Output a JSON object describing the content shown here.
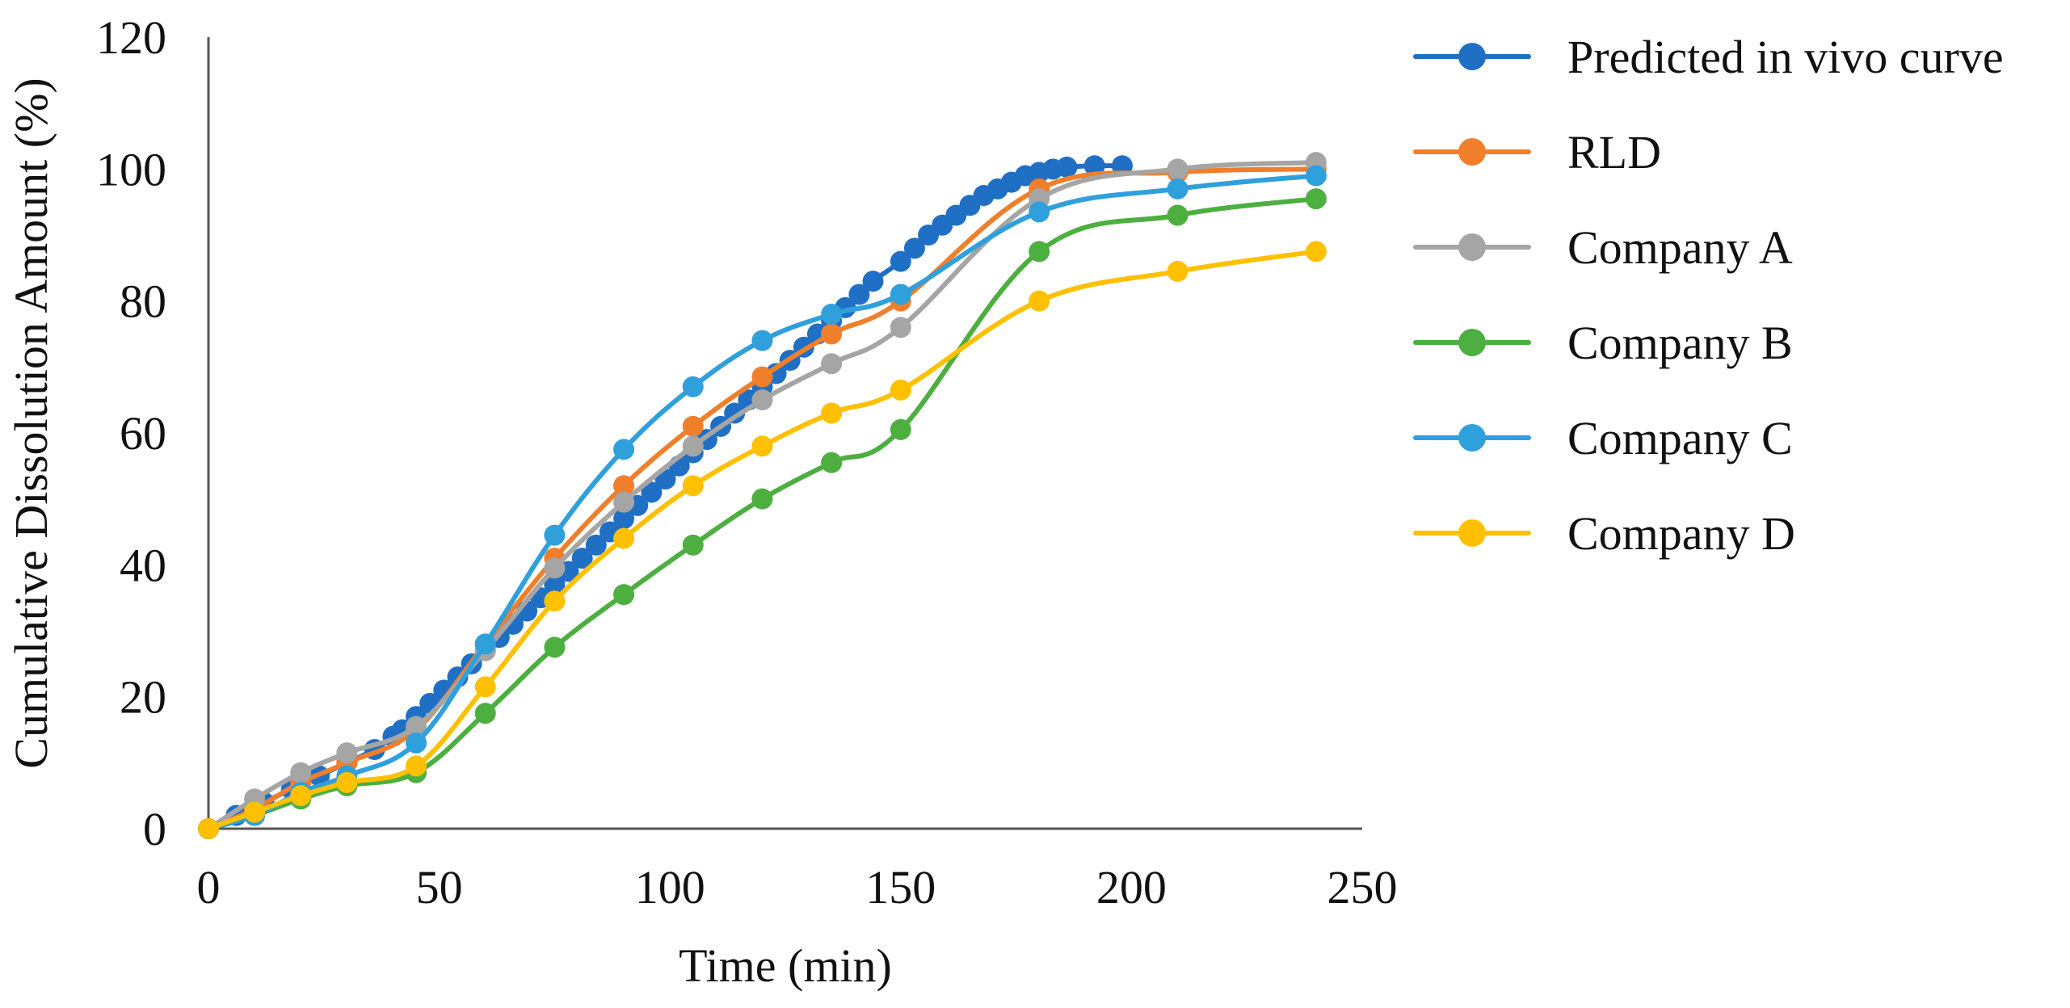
{
  "chart_data": {
    "type": "line",
    "title": "",
    "xlabel": "Time (min)",
    "ylabel": "Cumulative Dissolution Amount (%)",
    "xlim": [
      0,
      250
    ],
    "ylim": [
      0,
      120
    ],
    "xticks": [
      0,
      50,
      100,
      150,
      200,
      250
    ],
    "yticks": [
      0,
      20,
      40,
      60,
      80,
      100,
      120
    ],
    "x_tick_labels": [
      "0",
      "50",
      "100",
      "150",
      "200",
      "250"
    ],
    "y_tick_labels": [
      "0",
      "20",
      "40",
      "60",
      "80",
      "100",
      "120"
    ],
    "grid": false,
    "legend_position": "right",
    "series": [
      {
        "name": "Predicted in vivo curve",
        "color": "#1F6FC5",
        "x": [
          0,
          6,
          12,
          18,
          24,
          30,
          36,
          40,
          42,
          45,
          48,
          51,
          54,
          57,
          60,
          63,
          66,
          69,
          72,
          75,
          78,
          81,
          84,
          87,
          90,
          93,
          96,
          99,
          102,
          105,
          108,
          111,
          114,
          117,
          120,
          123,
          126,
          129,
          132,
          135,
          138,
          141,
          144,
          150,
          153,
          156,
          159,
          162,
          165,
          168,
          171,
          174,
          177,
          180,
          183,
          186,
          192,
          198
        ],
        "y": [
          0,
          2,
          4,
          6,
          8,
          10,
          12,
          14,
          15,
          17,
          19,
          21,
          23,
          25,
          27,
          29,
          31,
          33,
          35,
          37,
          39,
          41,
          43,
          45,
          47,
          49,
          51,
          53,
          55,
          57,
          59,
          61,
          63,
          65,
          67,
          69,
          71,
          73,
          75,
          77,
          79,
          81,
          83,
          86,
          88,
          90,
          91.5,
          93,
          94.5,
          96,
          97,
          98,
          99,
          99.5,
          100,
          100.3,
          100.5,
          100.5
        ]
      },
      {
        "name": "RLD",
        "color": "#F07F2C",
        "x": [
          0,
          10,
          20,
          30,
          45,
          60,
          75,
          90,
          105,
          120,
          135,
          150,
          180,
          210,
          240
        ],
        "y": [
          0,
          3,
          7,
          10,
          15,
          28,
          41,
          52,
          61,
          68.5,
          75,
          80,
          97,
          99.5,
          100
        ]
      },
      {
        "name": "Company A",
        "color": "#A5A5A5",
        "x": [
          0,
          10,
          20,
          30,
          45,
          60,
          75,
          90,
          105,
          120,
          135,
          150,
          180,
          210,
          240
        ],
        "y": [
          0,
          4.5,
          8.5,
          11.5,
          15.5,
          27,
          39.5,
          49.5,
          58,
          65,
          70.5,
          76,
          95.5,
          100,
          101
        ]
      },
      {
        "name": "Company B",
        "color": "#4CAF3F",
        "x": [
          0,
          10,
          20,
          30,
          45,
          60,
          75,
          90,
          105,
          120,
          135,
          150,
          180,
          210,
          240
        ],
        "y": [
          0,
          2,
          4.5,
          6.5,
          8.5,
          17.5,
          27.5,
          35.5,
          43,
          50,
          55.5,
          60.5,
          87.5,
          93,
          95.5
        ]
      },
      {
        "name": "Company C",
        "color": "#2FA0DC",
        "x": [
          0,
          10,
          20,
          30,
          45,
          60,
          75,
          90,
          105,
          120,
          135,
          150,
          180,
          210,
          240
        ],
        "y": [
          0,
          2,
          5.5,
          8,
          13,
          28,
          44.5,
          57.5,
          67,
          74,
          78,
          81,
          93.5,
          97,
          99
        ]
      },
      {
        "name": "Company D",
        "color": "#FFC000",
        "x": [
          0,
          10,
          20,
          30,
          45,
          60,
          75,
          90,
          105,
          120,
          135,
          150,
          180,
          210,
          240
        ],
        "y": [
          0,
          2.5,
          5,
          7,
          9.5,
          21.5,
          34.5,
          44,
          52,
          58,
          63,
          66.5,
          80,
          84.5,
          87.5
        ]
      }
    ]
  }
}
